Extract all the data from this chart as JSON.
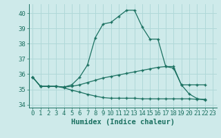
{
  "xlabel": "Humidex (Indice chaleur)",
  "background_color": "#ceeaea",
  "grid_color": "#b0d8d8",
  "line_color": "#1a7060",
  "xlim": [
    -0.5,
    23.5
  ],
  "ylim": [
    33.8,
    40.6
  ],
  "xticks": [
    0,
    1,
    2,
    3,
    4,
    5,
    6,
    7,
    8,
    9,
    10,
    11,
    12,
    13,
    14,
    15,
    16,
    17,
    18,
    19,
    20,
    21,
    22,
    23
  ],
  "yticks": [
    34,
    35,
    36,
    37,
    38,
    39,
    40
  ],
  "series": [
    [
      35.8,
      35.2,
      35.2,
      35.2,
      35.15,
      35.3,
      35.8,
      36.6,
      38.4,
      39.3,
      39.4,
      39.8,
      40.2,
      40.2,
      39.1,
      38.3,
      38.3,
      36.5,
      36.4,
      35.3,
      34.7,
      34.4,
      34.3
    ],
    [
      35.8,
      35.2,
      35.2,
      35.2,
      35.15,
      35.2,
      35.3,
      35.45,
      35.6,
      35.75,
      35.85,
      35.95,
      36.05,
      36.15,
      36.25,
      36.35,
      36.45,
      36.5,
      36.5,
      35.3,
      35.3,
      35.3,
      35.3
    ],
    [
      35.8,
      35.2,
      35.2,
      35.2,
      35.1,
      34.95,
      34.82,
      34.68,
      34.56,
      34.46,
      34.42,
      34.42,
      34.42,
      34.42,
      34.38,
      34.38,
      34.38,
      34.38,
      34.38,
      34.38,
      34.38,
      34.35,
      34.35
    ]
  ],
  "tick_fontsize": 6.5,
  "label_fontsize": 7.5
}
